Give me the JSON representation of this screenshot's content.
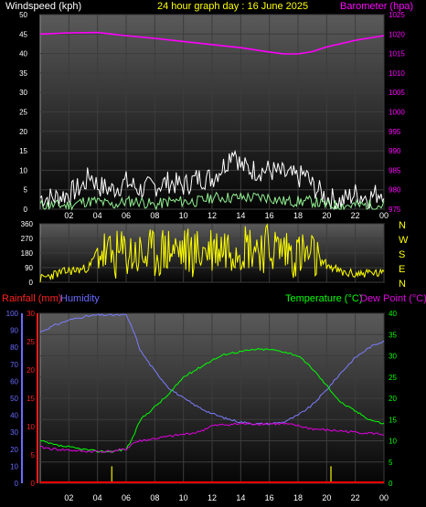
{
  "colors": {
    "background": "#000000",
    "plot_top": "#5a5a5a",
    "plot_bottom": "#050505",
    "grid": "#3c3c3c",
    "white": "#ffffff",
    "yellow": "#ffff00",
    "magenta": "#ff00ff",
    "green": "#00ff00",
    "blue": "#6a6aff",
    "red": "#ff2020",
    "wind_gust": "#ffffff",
    "wind_avg": "#90ee90",
    "pressure": "#ff00ff",
    "wind_dir": "#ffff00",
    "rain": "#ff0000",
    "rain_rate": "#c8c800",
    "humidity": "#7c7cff",
    "temperature": "#00ff00",
    "dewpoint": "#e000e0",
    "axis_rain": "#ff2020",
    "axis_humidity": "#6a6aff"
  },
  "header": {
    "left": "Windspeed (kph)",
    "center": "24 hour graph day : 16 June 2025",
    "right": "Barometer (hpa)"
  },
  "x_tick_labels": [
    "02",
    "04",
    "06",
    "08",
    "10",
    "12",
    "14",
    "16",
    "18",
    "20",
    "22",
    "00"
  ],
  "compass": {
    "n1": "N",
    "w": "W",
    "s": "S",
    "e": "E",
    "n2": "N"
  },
  "bottom_header": {
    "rain": "Rainfall (mm)",
    "humidity": "Humidity",
    "temperature": "Temperature (°C)",
    "dewpoint": "Dew Point (°C)"
  },
  "chart_data": [
    {
      "type": "line",
      "x_unit": "hour",
      "x_ticks": [
        2,
        4,
        6,
        8,
        10,
        12,
        14,
        16,
        18,
        20,
        22,
        24
      ],
      "ylabel": "Windspeed (kph)",
      "ylim": [
        0,
        50
      ],
      "y_ticks": [
        0,
        5,
        10,
        15,
        20,
        25,
        30,
        35,
        40,
        45,
        50
      ],
      "y2label": "Barometer (hpa)",
      "y2lim": [
        975,
        1025
      ],
      "y2_ticks": [
        975,
        980,
        985,
        990,
        995,
        1000,
        1005,
        1010,
        1015,
        1020,
        1025
      ],
      "grid": true,
      "series": [
        {
          "color": "#ffffff",
          "axis": "left",
          "style": "step",
          "x": [
            0,
            1,
            2,
            3,
            3.5,
            4,
            5,
            6,
            7,
            8,
            9,
            10,
            11,
            12,
            12.5,
            13,
            13.5,
            14,
            15,
            16,
            17,
            18,
            18.5,
            19,
            20,
            21,
            22,
            23,
            24
          ],
          "y": [
            3,
            3,
            4,
            6,
            9,
            6,
            5,
            7,
            5,
            6,
            7,
            6,
            8,
            8,
            10,
            12,
            16,
            11,
            10,
            10,
            9,
            8,
            9,
            6,
            3,
            2,
            4,
            3,
            5
          ]
        },
        {
          "color": "#90ee90",
          "axis": "left",
          "style": "step",
          "x": [
            0,
            1,
            2,
            3,
            4,
            5,
            6,
            7,
            8,
            9,
            10,
            11,
            12,
            13,
            14,
            15,
            16,
            17,
            18,
            19,
            20,
            21,
            22,
            23,
            24
          ],
          "y": [
            1,
            1,
            1,
            2,
            2,
            1,
            2,
            2,
            1,
            2,
            2,
            2,
            3,
            3,
            3,
            3,
            3,
            2,
            2,
            2,
            1,
            1,
            1,
            1,
            1
          ]
        },
        {
          "color": "#ff00ff",
          "axis": "right",
          "x": [
            0,
            2,
            4,
            6,
            8,
            10,
            12,
            14,
            16,
            17,
            18,
            19,
            20,
            22,
            24
          ],
          "y": [
            1020,
            1020.3,
            1020.4,
            1019.6,
            1018.9,
            1018.1,
            1017.3,
            1016.5,
            1015.4,
            1014.9,
            1014.9,
            1015.5,
            1016.7,
            1018.4,
            1019.6
          ]
        }
      ]
    },
    {
      "type": "line",
      "x_unit": "hour",
      "ylim": [
        0,
        360
      ],
      "y_ticks": [
        0,
        90,
        180,
        270,
        360
      ],
      "grid": true,
      "series": [
        {
          "color": "#ffff00",
          "x": [
            0,
            1,
            2,
            3,
            3.5,
            4,
            5,
            6,
            7,
            8,
            9,
            10,
            11,
            12,
            13,
            14,
            15,
            16,
            17,
            18,
            19,
            20,
            21,
            22,
            23,
            24
          ],
          "y": [
            20,
            50,
            70,
            80,
            100,
            200,
            150,
            180,
            160,
            170,
            200,
            190,
            180,
            210,
            220,
            230,
            220,
            210,
            200,
            170,
            150,
            110,
            60,
            50,
            60,
            50
          ]
        }
      ]
    },
    {
      "type": "line",
      "x_unit": "hour",
      "y_rain_label": "Rainfall (mm)",
      "y_rain_lim": [
        0,
        30
      ],
      "y_rain_ticks": [
        0,
        5,
        10,
        15,
        20,
        25,
        30
      ],
      "y_hum_label": "Humidity",
      "y_hum_lim": [
        0,
        100
      ],
      "y_hum_ticks": [
        0,
        10,
        20,
        30,
        40,
        50,
        60,
        70,
        80,
        90,
        100
      ],
      "y2label": "Temperature (°C) / Dew Point (°C)",
      "y2lim": [
        0,
        40
      ],
      "y2_ticks": [
        0,
        5,
        10,
        15,
        20,
        25,
        30,
        35,
        40
      ],
      "grid": true,
      "series": [
        {
          "color": "#7c7cff",
          "axis": "humidity",
          "x": [
            0,
            1,
            2,
            3,
            4,
            5,
            6,
            6.5,
            7,
            8,
            9,
            10,
            11,
            12,
            13,
            14,
            15,
            16,
            17,
            18,
            19,
            20,
            21,
            22,
            23,
            24
          ],
          "y": [
            89,
            93,
            96,
            98,
            99,
            99,
            99,
            90,
            78,
            66,
            56,
            50,
            45,
            41,
            38,
            36,
            35,
            35,
            36,
            40,
            46,
            55,
            65,
            74,
            80,
            84
          ]
        },
        {
          "color": "#00ff00",
          "axis": "temperature",
          "x": [
            0,
            1,
            2,
            3,
            4,
            5,
            6,
            6.5,
            7,
            8,
            9,
            10,
            11,
            12,
            13,
            14,
            15,
            16,
            17,
            18,
            19,
            20,
            21,
            22,
            23,
            24
          ],
          "y": [
            10,
            9,
            8.5,
            8,
            7.5,
            7.5,
            8,
            11,
            15,
            18,
            21,
            25,
            27,
            29,
            30.5,
            31,
            31.5,
            31.5,
            31,
            30,
            27,
            23,
            19,
            17,
            15,
            14
          ]
        },
        {
          "color": "#e000e0",
          "axis": "temperature",
          "x": [
            0,
            1,
            2,
            3,
            4,
            5,
            6,
            6.5,
            7,
            8,
            9,
            10,
            11,
            12,
            13,
            14,
            15,
            16,
            17,
            18,
            19,
            20,
            21,
            22,
            23,
            24
          ],
          "y": [
            8.5,
            8,
            7.8,
            7.5,
            7.5,
            7.5,
            8,
            9.5,
            10,
            10.5,
            11,
            11.5,
            12,
            13.5,
            13.8,
            14,
            14,
            14,
            14,
            13.5,
            12.8,
            12.5,
            12.3,
            12,
            11.8,
            11.5
          ]
        },
        {
          "color": "#ff0000",
          "axis": "rain",
          "x": [
            0,
            24
          ],
          "y": [
            0,
            0
          ]
        },
        {
          "color": "#c8c800",
          "axis": "rain_rate_bars",
          "x": [
            5,
            20.3
          ],
          "y": [
            3,
            3
          ]
        }
      ]
    }
  ]
}
